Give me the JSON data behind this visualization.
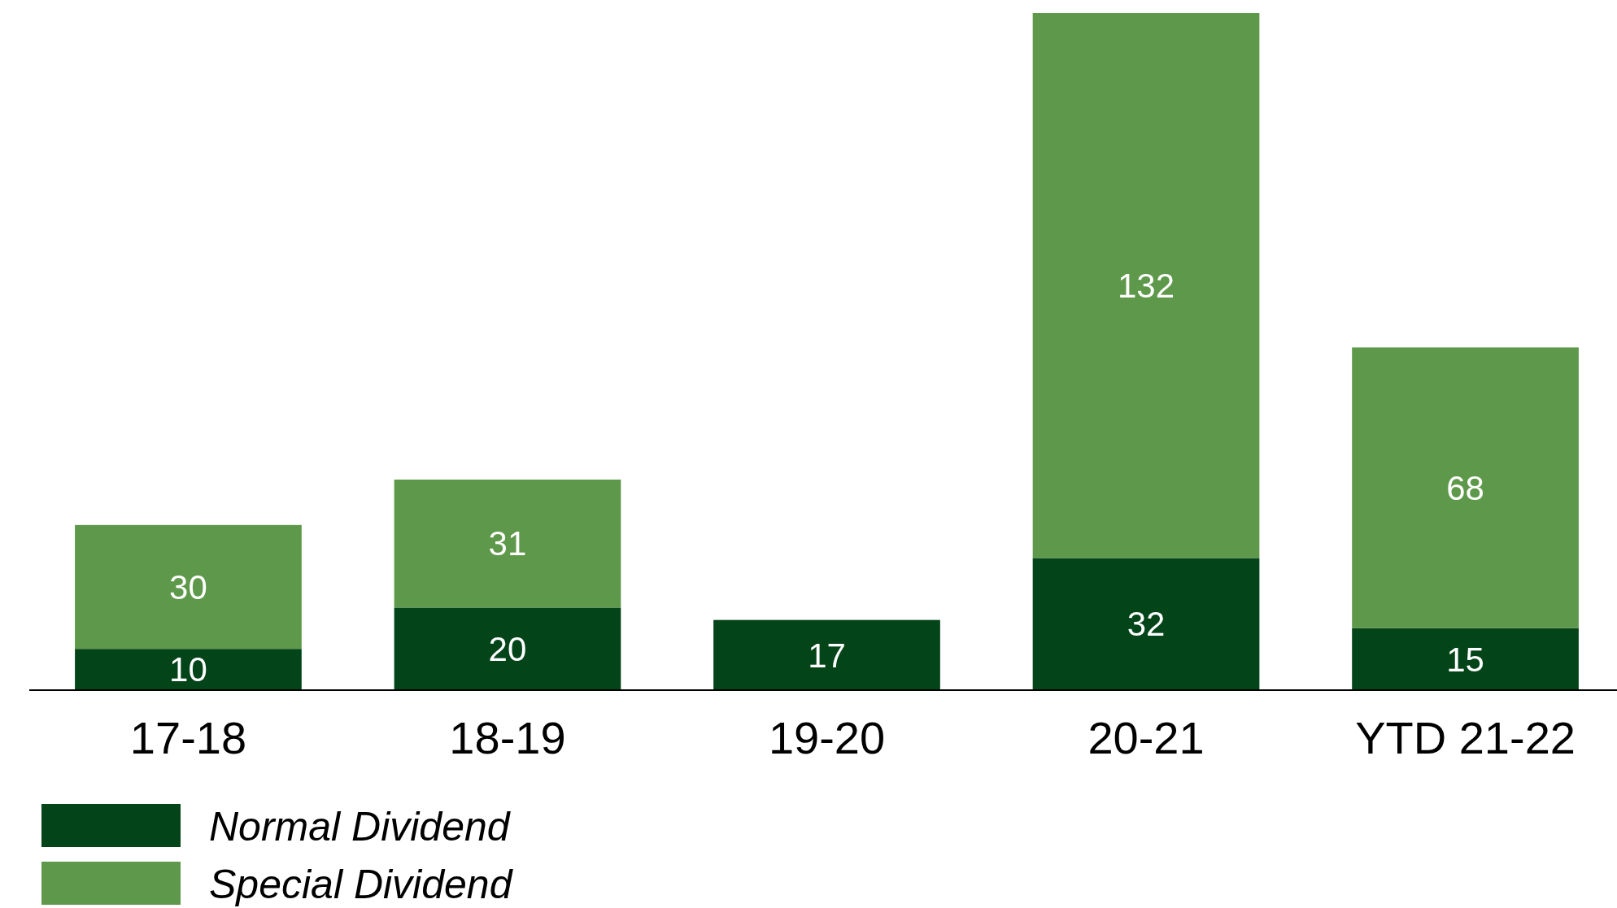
{
  "chart_data": {
    "type": "bar",
    "stacked": true,
    "data_labels": true,
    "legend": "bottom left",
    "categories": [
      "17-18",
      "18-19",
      "19-20",
      "20-21",
      "YTD 21-22"
    ],
    "series": [
      {
        "name": "Normal Dividend",
        "color": "#034419",
        "values": [
          10,
          20,
          17,
          32,
          15
        ]
      },
      {
        "name": "Special Dividend",
        "color": "#5e984a",
        "values": [
          30,
          31,
          null,
          132,
          68
        ]
      }
    ]
  }
}
